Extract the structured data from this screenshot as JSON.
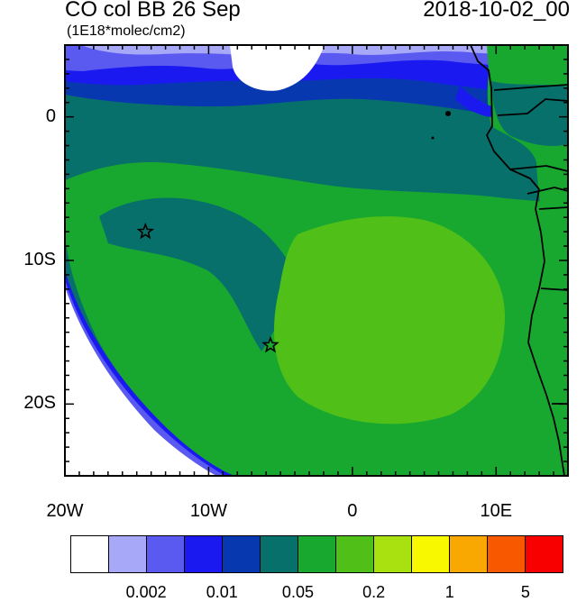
{
  "title": "CO col BB 26 Sep",
  "datetime": "2018-10-02_00",
  "units": "(1E18*molec/cm2)",
  "lat_labels": [
    {
      "text": "0",
      "lat": 0
    },
    {
      "text": "10S",
      "lat": -10
    },
    {
      "text": "20S",
      "lat": -20
    }
  ],
  "lon_labels": [
    {
      "text": "20W",
      "lon": -20
    },
    {
      "text": "10W",
      "lon": -10
    },
    {
      "text": "0",
      "lon": 0
    },
    {
      "text": "10E",
      "lon": 10
    }
  ],
  "map": {
    "lon_range": [
      -20,
      15
    ],
    "lat_range": [
      -25,
      5
    ],
    "markers": [
      {
        "name": "star-marker-1",
        "lon": -14.4,
        "lat": -8.0,
        "symbol": "star"
      },
      {
        "name": "star-marker-2",
        "lon": -5.7,
        "lat": -15.9,
        "symbol": "star"
      }
    ]
  },
  "colorbar": {
    "colors": [
      "#ffffff",
      "#a8a8f8",
      "#5a5af0",
      "#1a1af0",
      "#0838b0",
      "#08706a",
      "#18a830",
      "#50c018",
      "#a8e010",
      "#f8f800",
      "#f8a800",
      "#f85800",
      "#f80000"
    ],
    "labels": [
      {
        "text": "0.002",
        "boundary": 2
      },
      {
        "text": "0.01",
        "boundary": 4
      },
      {
        "text": "0.05",
        "boundary": 6
      },
      {
        "text": "0.2",
        "boundary": 8
      },
      {
        "text": "1",
        "boundary": 10
      },
      {
        "text": "5",
        "boundary": 12
      }
    ]
  }
}
